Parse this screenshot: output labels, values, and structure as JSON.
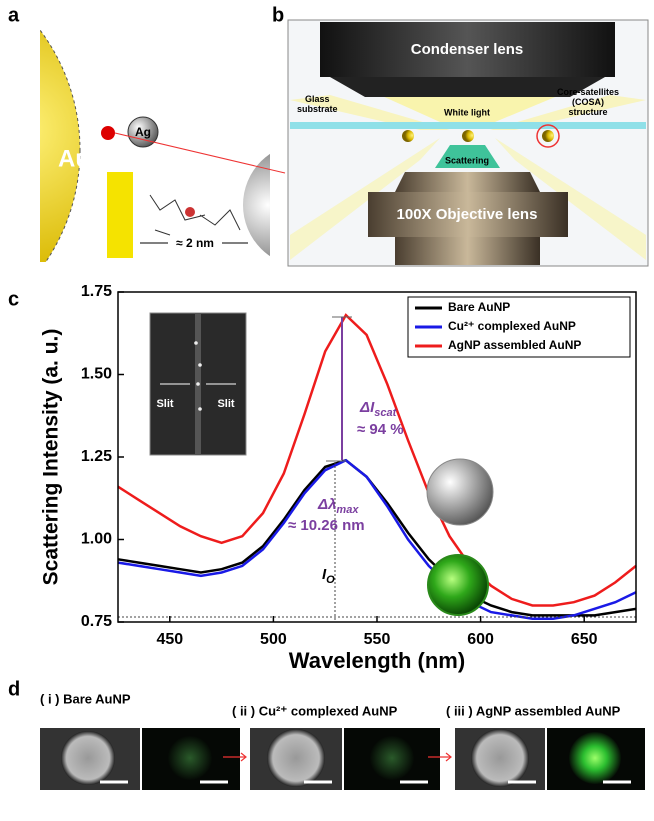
{
  "panel_a": {
    "label": "a",
    "core": "Au",
    "satellite": "Ag",
    "distance": "≈ 2 nm"
  },
  "panel_b": {
    "label": "b",
    "condenser": "Condenser lens",
    "white_light": "White light",
    "substrate": [
      "Glass",
      "substrate"
    ],
    "cosa": [
      "Core-satellites",
      "(COSA)",
      "structure"
    ],
    "scattering": "Scattering",
    "objective": "100X Objective lens"
  },
  "panel_c": {
    "label": "c"
  },
  "chart_data": {
    "type": "line",
    "xlabel": "Wavelength (nm)",
    "ylabel": "Scattering Intensity (a. u.)",
    "x": [
      425,
      435,
      445,
      455,
      465,
      475,
      485,
      495,
      505,
      515,
      525,
      535,
      545,
      555,
      565,
      575,
      585,
      595,
      605,
      615,
      625,
      635,
      645,
      655,
      665,
      675
    ],
    "series": [
      {
        "name": "Bare AuNP",
        "color": "#000000",
        "values": [
          0.94,
          0.93,
          0.92,
          0.91,
          0.9,
          0.91,
          0.93,
          0.98,
          1.06,
          1.15,
          1.22,
          1.24,
          1.19,
          1.11,
          1.02,
          0.94,
          0.88,
          0.83,
          0.8,
          0.78,
          0.77,
          0.77,
          0.77,
          0.77,
          0.78,
          0.79
        ]
      },
      {
        "name": "Cu²⁺ complexed AuNP",
        "color": "#1a1ae6",
        "values": [
          0.93,
          0.92,
          0.91,
          0.9,
          0.89,
          0.9,
          0.92,
          0.97,
          1.05,
          1.14,
          1.21,
          1.24,
          1.19,
          1.1,
          1.0,
          0.92,
          0.86,
          0.81,
          0.78,
          0.77,
          0.76,
          0.76,
          0.77,
          0.79,
          0.81,
          0.84
        ]
      },
      {
        "name": "AgNP assembled AuNP",
        "color": "#ee1c1c",
        "values": [
          1.16,
          1.12,
          1.08,
          1.04,
          1.01,
          0.99,
          1.01,
          1.08,
          1.2,
          1.38,
          1.57,
          1.68,
          1.62,
          1.47,
          1.3,
          1.14,
          1.01,
          0.92,
          0.86,
          0.82,
          0.8,
          0.8,
          0.81,
          0.83,
          0.87,
          0.92
        ]
      }
    ],
    "xlim": [
      425,
      675
    ],
    "xticks": [
      450,
      500,
      550,
      600,
      650
    ],
    "ylim": [
      0.75,
      1.75
    ],
    "yticks": [
      0.75,
      {
        "value": 1,
        "label": "1.00"
      },
      1.25,
      {
        "value": 1.5,
        "label": "1.50"
      },
      1.75
    ],
    "legend": "upper right",
    "annotations": [
      {
        "text": "ΔI",
        "sub": "scat"
      },
      {
        "text": "≈ 94 %"
      },
      {
        "text": "Δλ",
        "sub": "max"
      },
      {
        "text": "≈ 10.26 nm"
      },
      {
        "text": "I",
        "sub": "O"
      }
    ],
    "inset_labels": [
      "Slit",
      "Slit"
    ]
  },
  "panel_d": {
    "label": "d",
    "captions": [
      "( i ) Bare AuNP",
      "( ii ) Cu²⁺ complexed AuNP",
      "( iii ) AgNP assembled AuNP"
    ]
  }
}
